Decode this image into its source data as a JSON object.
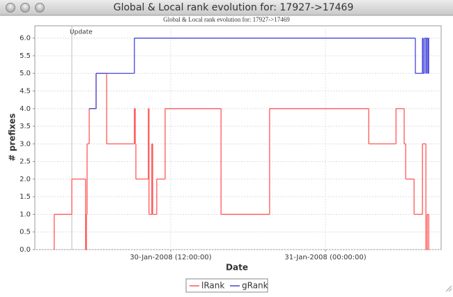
{
  "window_title": "Global & Local rank evolution for: 17927->17469",
  "chart_data": {
    "type": "line",
    "step": "after",
    "title": "Global & Local rank evolution for: 17927->17469",
    "x_label": "Date",
    "y_label": "# prefixes",
    "xlim": [
      "2008-01-30T01:28",
      "2008-01-31T08:58"
    ],
    "xticks": [
      {
        "value": "2008-01-30T12:00",
        "label": "30-Jan-2008 (12:00:00)"
      },
      {
        "value": "2008-01-31T00:00",
        "label": "31-Jan-2008 (00:00:00)"
      }
    ],
    "ylim": [
      0,
      6.35
    ],
    "yticks": [
      {
        "value": 0,
        "label": "0.0"
      },
      0.5,
      {
        "value": 1,
        "label": "1.0"
      },
      1.5,
      {
        "value": 2,
        "label": "2.0"
      },
      2.5,
      {
        "value": 3,
        "label": "3.0"
      },
      3.5,
      {
        "value": 4,
        "label": "4.0"
      },
      4.5,
      {
        "value": 5,
        "label": "5.0"
      },
      5.5,
      {
        "value": 6,
        "label": "6.0"
      }
    ],
    "grid": true,
    "annotations": [
      {
        "x": "2008-01-30T04:20",
        "text": "Update"
      }
    ],
    "series": [
      {
        "name": "lRank",
        "color": "#ff5555",
        "x": [
          "2008-01-30T02:55",
          "2008-01-30T02:58",
          "2008-01-30T04:20",
          "2008-01-30T05:24",
          "2008-01-30T05:28",
          "2008-01-30T05:31",
          "2008-01-30T05:41",
          "2008-01-30T06:13",
          "2008-01-30T07:02",
          "2008-01-30T09:11",
          "2008-01-30T09:15",
          "2008-01-30T09:18",
          "2008-01-30T10:16",
          "2008-01-30T10:19",
          "2008-01-30T10:32",
          "2008-01-30T10:36",
          "2008-01-30T10:55",
          "2008-01-30T11:34",
          "2008-01-30T15:54",
          "2008-01-30T19:40",
          "2008-01-31T03:21",
          "2008-01-31T05:28",
          "2008-01-31T06:06",
          "2008-01-31T06:13",
          "2008-01-31T06:52",
          "2008-01-31T07:31",
          "2008-01-31T07:47",
          "2008-01-31T07:53",
          "2008-01-31T08:00"
        ],
        "values": [
          0,
          1,
          2,
          0,
          1,
          3,
          4,
          5,
          3,
          4,
          3,
          2,
          4,
          1,
          3,
          1,
          2,
          4,
          1,
          4,
          3,
          4,
          3,
          2,
          1,
          3,
          0,
          1,
          0
        ]
      },
      {
        "name": "gRank",
        "color": "#4444dd",
        "x": [
          "2008-01-30T05:41",
          "2008-01-30T06:13",
          "2008-01-30T09:11",
          "2008-01-31T06:58",
          "2008-01-31T07:31",
          "2008-01-31T07:34",
          "2008-01-31T07:40",
          "2008-01-31T07:47",
          "2008-01-31T07:50",
          "2008-01-31T07:56",
          "2008-01-31T08:00"
        ],
        "values": [
          4,
          5,
          6,
          5,
          6,
          5,
          6,
          5,
          6,
          5,
          6
        ]
      }
    ],
    "legend": "bottom"
  }
}
